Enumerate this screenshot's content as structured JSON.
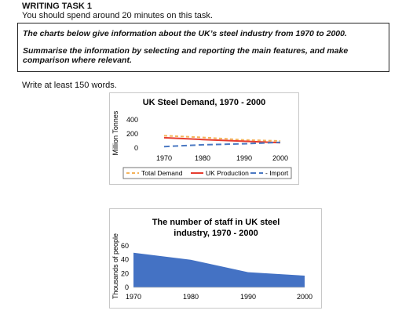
{
  "header": {
    "title": "WRITING TASK 1",
    "subtitle": "You should spend around 20 minutes on this task."
  },
  "prompt": {
    "line1": "The charts below give information about the UK’s steel industry from 1970 to 2000.",
    "line2": "Summarise the information by selecting and reporting the main features, and make",
    "line3": "comparison where relevant."
  },
  "instruction": "Write at least 150 words.",
  "chart_data": [
    {
      "type": "line",
      "title": "UK Steel Demand, 1970 - 2000",
      "xlabel": "",
      "ylabel": "Million Tonnes",
      "x": [
        1970,
        1980,
        1990,
        2000
      ],
      "xticks": [
        "1970",
        "1980",
        "1990",
        "2000"
      ],
      "yticks": [
        "400",
        "200",
        "0"
      ],
      "ylim": [
        0,
        400
      ],
      "series": [
        {
          "name": "Total Demand",
          "values": [
            175,
            150,
            115,
            100
          ],
          "color": "#f5b35a",
          "dash": "4,3"
        },
        {
          "name": "UK Production",
          "values": [
            145,
            120,
            95,
            75
          ],
          "color": "#e63c2f",
          "dash": ""
        },
        {
          "name": "Import",
          "values": [
            20,
            45,
            60,
            80
          ],
          "color": "#4a78c2",
          "dash": "7,4"
        }
      ],
      "legend": "bottom"
    },
    {
      "type": "area",
      "title": "The number of staff in UK steel industry, 1970 - 2000",
      "title_line1": "The number of staff in UK steel",
      "title_line2": "industry, 1970 - 2000",
      "xlabel": "",
      "ylabel": "Thousands of people",
      "x": [
        1970,
        1980,
        1990,
        2000
      ],
      "xticks": [
        "1970",
        "1980",
        "1990",
        "2000"
      ],
      "yticks": [
        "60",
        "40",
        "20",
        "0"
      ],
      "ylim": [
        0,
        60
      ],
      "series": [
        {
          "name": "",
          "values": [
            50,
            40,
            22,
            17
          ],
          "color": "#4472c4"
        }
      ]
    }
  ]
}
